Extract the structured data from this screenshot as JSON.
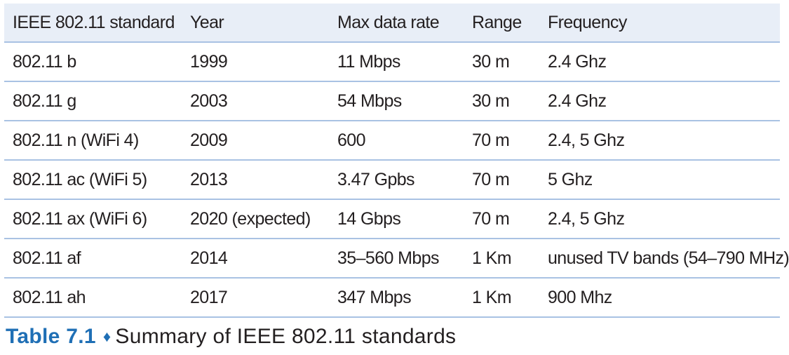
{
  "table": {
    "headers": [
      "IEEE 802.11 standard",
      "Year",
      "Max data rate",
      "Range",
      "Frequency"
    ],
    "rows": [
      [
        "802.11 b",
        "1999",
        "11 Mbps",
        "30 m",
        "2.4 Ghz"
      ],
      [
        "802.11 g",
        "2003",
        "54 Mbps",
        "30 m",
        "2.4 Ghz"
      ],
      [
        "802.11 n (WiFi 4)",
        "2009",
        "600",
        "70 m",
        "2.4, 5 Ghz"
      ],
      [
        "802.11 ac (WiFi 5)",
        "2013",
        "3.47 Gpbs",
        "70 m",
        "5 Ghz"
      ],
      [
        "802.11 ax (WiFi 6)",
        "2020 (expected)",
        "14 Gbps",
        "70 m",
        "2.4, 5 Ghz"
      ],
      [
        "802.11 af",
        "2014",
        "35–560 Mbps",
        "1 Km",
        "unused TV bands (54–790 MHz)"
      ],
      [
        "802.11 ah",
        "2017",
        "347 Mbps",
        "1 Km",
        "900 Mhz"
      ]
    ]
  },
  "caption": {
    "number": "Table 7.1",
    "separator": "♦",
    "text": "Summary of IEEE 802.11 standards"
  },
  "colors": {
    "header_bg": "#e8eef7",
    "rule": "#a9c2e3",
    "caption_accent": "#1f6fb5",
    "text": "#231f20"
  }
}
